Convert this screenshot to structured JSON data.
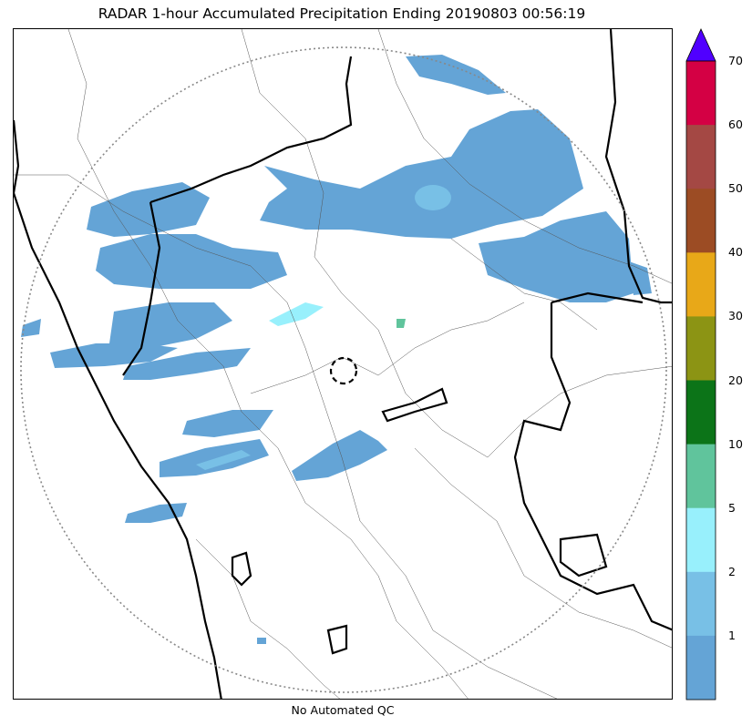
{
  "title": "RADAR 1-hour Accumulated Precipitation Ending 20190803 00:56:19",
  "footer": "No Automated QC",
  "colors": {
    "rain_light": "#64a4d6",
    "rain_medium": "#78c0e6",
    "rain_cyan": "#98f0fc",
    "rain_green": "#60c49c",
    "border_thick": "#000000",
    "border_thin": "#555555",
    "range_ring": "#888888"
  },
  "colorbar": {
    "ticks": [
      "1",
      "2",
      "5",
      "10",
      "20",
      "30",
      "40",
      "50",
      "60",
      "70"
    ],
    "bands": [
      "#64a4d6",
      "#78c0e6",
      "#98f0fc",
      "#60c49c",
      "#0c7418",
      "#8c9414",
      "#e8a818",
      "#9c4c24",
      "#a44844",
      "#d40044"
    ],
    "overflow_color": "#5000ff"
  }
}
